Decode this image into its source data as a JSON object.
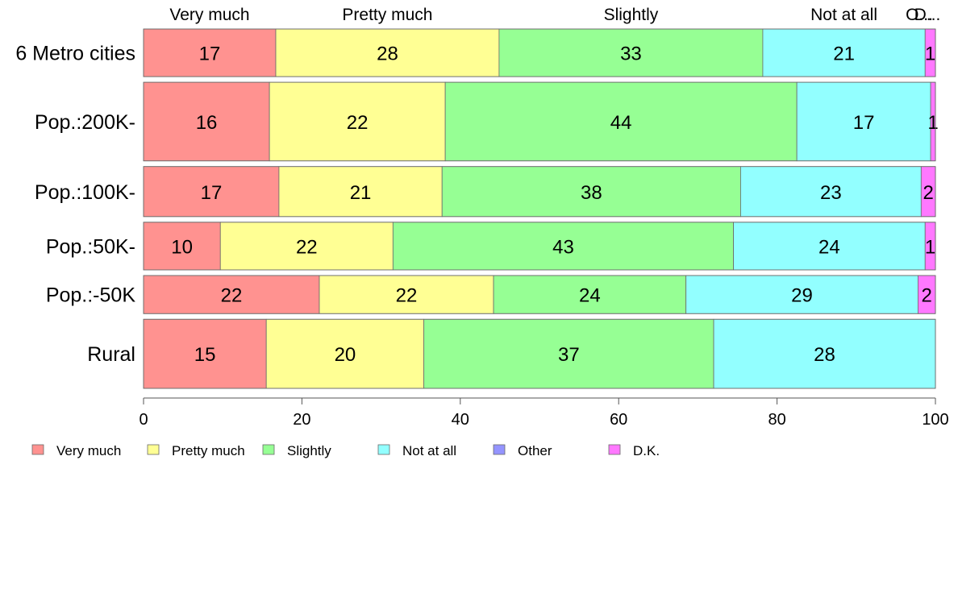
{
  "chart_data": {
    "type": "bar",
    "orientation": "horizontal",
    "stacked": true,
    "categories": [
      "6 Metro cities",
      "Pop.:200K-",
      "Pop.:100K-",
      "Pop.:50K-",
      "Pop.:-50K",
      "Rural"
    ],
    "relative_row_heights": [
      1.0,
      1.65,
      1.05,
      1.0,
      0.8,
      1.45
    ],
    "series": [
      {
        "name": "Very much",
        "color": "#ff9290",
        "values": [
          16.7,
          15.9,
          17.1,
          9.7,
          22.2,
          15.5
        ]
      },
      {
        "name": "Pretty much",
        "color": "#ffff94",
        "values": [
          28.2,
          22.2,
          20.6,
          21.8,
          22.0,
          19.9
        ]
      },
      {
        "name": "Slightly",
        "color": "#96ff94",
        "values": [
          33.3,
          44.4,
          37.7,
          43.0,
          24.3,
          36.6
        ]
      },
      {
        "name": "Not at all",
        "color": "#92ffff",
        "values": [
          20.5,
          16.9,
          22.8,
          24.2,
          29.3,
          28.0
        ]
      },
      {
        "name": "Other",
        "color": "#9494ff",
        "values": [
          0.0,
          0.0,
          0.0,
          0.0,
          0.0,
          0.0
        ]
      },
      {
        "name": "D.K.",
        "color": "#ff78ff",
        "values": [
          1.3,
          0.6,
          1.8,
          1.3,
          2.2,
          0.0
        ]
      }
    ],
    "bar_labels": [
      [
        "17",
        "28",
        "33",
        "21",
        "",
        "1"
      ],
      [
        "16",
        "22",
        "44",
        "17",
        "",
        "1"
      ],
      [
        "17",
        "21",
        "38",
        "23",
        "",
        "2"
      ],
      [
        "10",
        "22",
        "43",
        "24",
        "",
        "1"
      ],
      [
        "22",
        "22",
        "24",
        "29",
        "",
        "2"
      ],
      [
        "15",
        "20",
        "37",
        "28",
        "",
        ""
      ]
    ],
    "column_headers": [
      "Very much",
      "Pretty much",
      "Slightly",
      "Not at all",
      "O...",
      "D..."
    ],
    "xlim": [
      0,
      100
    ],
    "xticks": [
      0,
      20,
      40,
      60,
      80,
      100
    ],
    "legend_position": "bottom-left",
    "grid": false
  }
}
